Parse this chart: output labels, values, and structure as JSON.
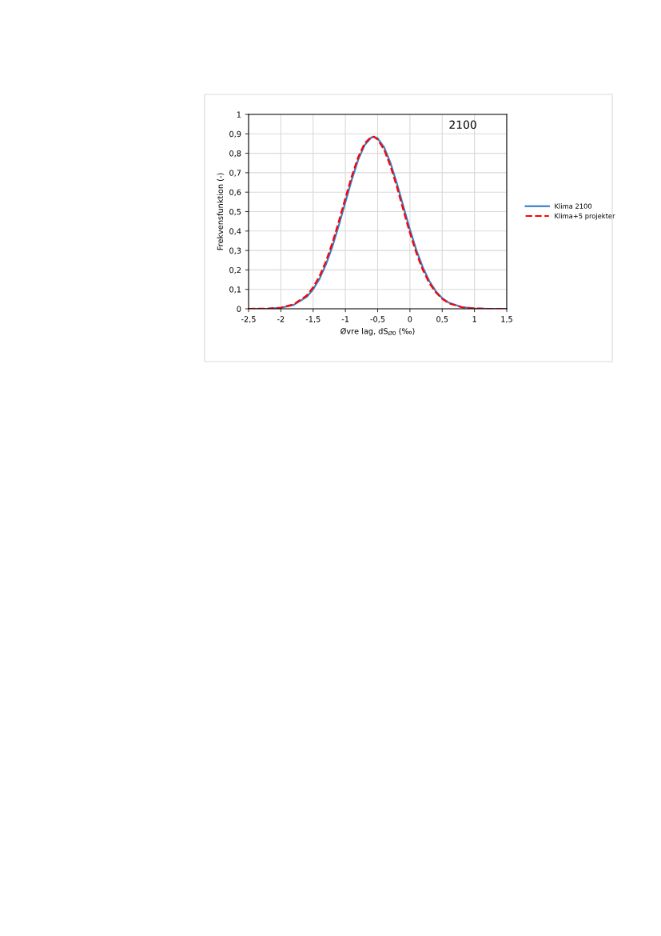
{
  "chart_data": {
    "type": "line",
    "xlabel": "Øvre lag, dS$_{Ø0}$ (‰)",
    "ylabel": "Frekvensfunktion (-)",
    "annotations": [
      "2100"
    ],
    "xlim": [
      -2.5,
      1.5
    ],
    "xticks": [
      {
        "value": -2.5,
        "label": "-2,5"
      },
      {
        "value": -2,
        "label": "-2"
      },
      {
        "value": -1.5,
        "label": "-1,5"
      },
      {
        "value": -1,
        "label": "-1"
      },
      {
        "value": -0.5,
        "label": "-0,5"
      },
      {
        "value": 0,
        "label": "0"
      },
      {
        "value": 0.5,
        "label": "0,5"
      },
      {
        "value": 1,
        "label": "1"
      },
      {
        "value": 1.5,
        "label": "1,5"
      }
    ],
    "ylim": [
      0,
      1
    ],
    "yticks": [
      0,
      {
        "value": 0.1,
        "label": "0,1"
      },
      {
        "value": 0.2,
        "label": "0,2"
      },
      {
        "value": 0.3,
        "label": "0,3"
      },
      {
        "value": 0.4,
        "label": "0,4"
      },
      {
        "value": 0.5,
        "label": "0,5"
      },
      {
        "value": 0.6,
        "label": "0,6"
      },
      {
        "value": 0.7,
        "label": "0,7"
      },
      {
        "value": 0.8,
        "label": "0,8"
      },
      {
        "value": 0.9,
        "label": "0,9"
      },
      1
    ],
    "x": [
      -2.5,
      -2.2,
      -2.0,
      -1.8,
      -1.6,
      -1.5,
      -1.4,
      -1.3,
      -1.2,
      -1.1,
      -1.0,
      -0.9,
      -0.8,
      -0.7,
      -0.6,
      -0.56,
      -0.5,
      -0.4,
      -0.3,
      -0.2,
      -0.1,
      0.0,
      0.1,
      0.2,
      0.3,
      0.4,
      0.5,
      0.6,
      0.8,
      1.0,
      1.2,
      1.5
    ],
    "series": [
      {
        "name": "Klima 2100",
        "color": "#3a7fc8",
        "line_style": "solid",
        "values": [
          0,
          0.001,
          0.005,
          0.02,
          0.061,
          0.1,
          0.155,
          0.229,
          0.322,
          0.431,
          0.549,
          0.665,
          0.768,
          0.843,
          0.881,
          0.885,
          0.877,
          0.831,
          0.749,
          0.643,
          0.525,
          0.408,
          0.302,
          0.213,
          0.143,
          0.091,
          0.055,
          0.032,
          0.009,
          0.002,
          0,
          0
        ]
      },
      {
        "name": "Klima+5 projekter",
        "color": "#ff0000",
        "line_style": "dashed",
        "values": [
          0,
          0.001,
          0.006,
          0.023,
          0.068,
          0.11,
          0.168,
          0.245,
          0.34,
          0.451,
          0.569,
          0.683,
          0.781,
          0.852,
          0.884,
          0.885,
          0.871,
          0.819,
          0.733,
          0.625,
          0.506,
          0.39,
          0.287,
          0.2,
          0.133,
          0.085,
          0.051,
          0.029,
          0.008,
          0.002,
          0,
          0
        ]
      }
    ],
    "grid": true,
    "legend": "right",
    "marker": "none"
  }
}
